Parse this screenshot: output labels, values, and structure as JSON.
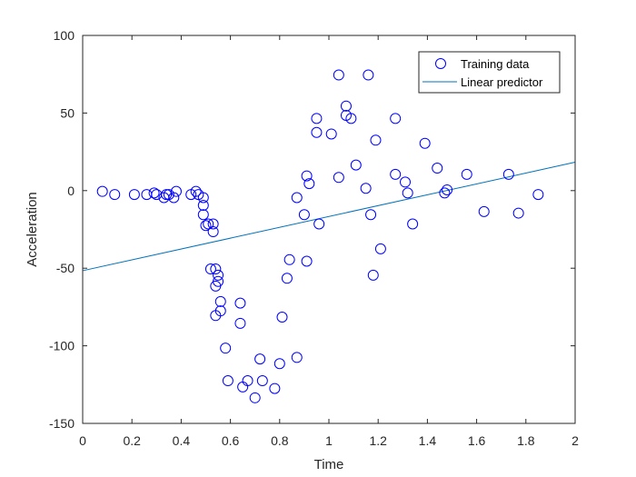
{
  "chart_data": {
    "type": "scatter",
    "xlabel": "Time",
    "ylabel": "Acceleration",
    "xlim": [
      0,
      2
    ],
    "ylim": [
      -150,
      100
    ],
    "xticks": [
      0,
      0.2,
      0.4,
      0.6,
      0.8,
      1,
      1.2,
      1.4,
      1.6,
      1.8,
      2
    ],
    "xtick_labels": [
      "0",
      "0.2",
      "0.4",
      "0.6",
      "0.8",
      "1",
      "1.2",
      "1.4",
      "1.6",
      "1.8",
      "2"
    ],
    "yticks": [
      -150,
      -100,
      -50,
      0,
      50,
      100
    ],
    "ytick_labels": [
      "-150",
      "-100",
      "-50",
      "0",
      "50",
      "100"
    ],
    "grid": false,
    "legend_position": "top-right",
    "series": [
      {
        "name": "Training data",
        "kind": "markers",
        "marker": "circle-open",
        "color": "#0000FF",
        "x": [
          0.08,
          0.13,
          0.21,
          0.26,
          0.29,
          0.3,
          0.33,
          0.34,
          0.35,
          0.37,
          0.38,
          0.44,
          0.46,
          0.47,
          0.49,
          0.49,
          0.49,
          0.5,
          0.51,
          0.52,
          0.53,
          0.53,
          0.54,
          0.54,
          0.54,
          0.55,
          0.55,
          0.56,
          0.56,
          0.58,
          0.59,
          0.64,
          0.64,
          0.65,
          0.67,
          0.7,
          0.72,
          0.73,
          0.78,
          0.8,
          0.81,
          0.83,
          0.84,
          0.87,
          0.87,
          0.9,
          0.91,
          0.91,
          0.92,
          0.95,
          0.95,
          0.96,
          1.01,
          1.04,
          1.04,
          1.07,
          1.07,
          1.09,
          1.11,
          1.15,
          1.16,
          1.17,
          1.18,
          1.19,
          1.21,
          1.27,
          1.27,
          1.31,
          1.32,
          1.34,
          1.39,
          1.44,
          1.47,
          1.48,
          1.56,
          1.63,
          1.73,
          1.77,
          1.85
        ],
        "y": [
          -0.5,
          -2.5,
          -2.5,
          -2.5,
          -1.5,
          -2.5,
          -4.5,
          -2.5,
          -2.5,
          -4.5,
          -0.5,
          -2.5,
          -0.5,
          -2.5,
          -9.5,
          -15.5,
          -4.5,
          -22.5,
          -21.5,
          -50.5,
          -26.5,
          -21.5,
          -50.5,
          -61.5,
          -80.5,
          -54.5,
          -58.5,
          -71.5,
          -77.5,
          -101.5,
          -122.5,
          -72.5,
          -85.5,
          -126.5,
          -122.5,
          -133.5,
          -108.5,
          -122.5,
          -127.5,
          -111.5,
          -81.5,
          -56.5,
          -44.5,
          -107.5,
          -4.5,
          -15.5,
          -45.5,
          9.5,
          4.5,
          37.5,
          46.5,
          -21.5,
          36.5,
          74.5,
          8.5,
          48.5,
          54.5,
          46.5,
          16.5,
          1.5,
          74.5,
          -15.5,
          -54.5,
          32.5,
          -37.5,
          10.5,
          46.5,
          5.5,
          -1.5,
          -21.5,
          30.5,
          14.5,
          -1.5,
          0.5,
          10.5,
          -13.5,
          10.5,
          -14.5,
          -2.5
        ]
      },
      {
        "name": "Linear predictor",
        "kind": "line",
        "color": "#0072BD",
        "x": [
          0,
          2
        ],
        "y": [
          -51.6,
          18.3
        ]
      }
    ]
  }
}
